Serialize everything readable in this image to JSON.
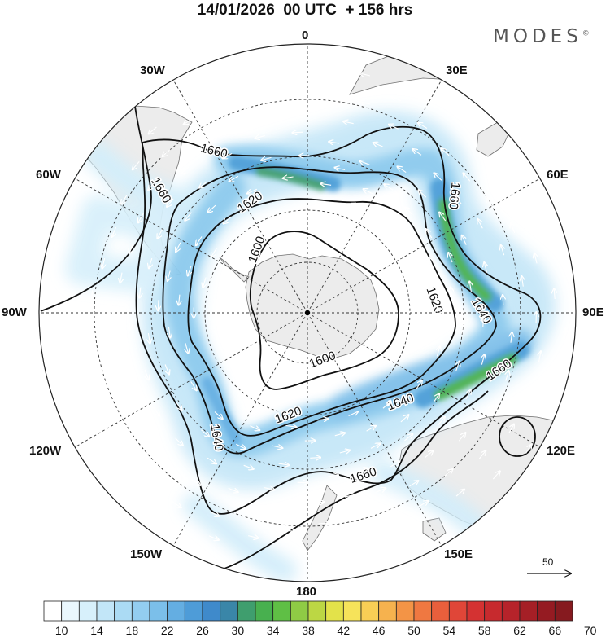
{
  "title": "14/01/2026  00 UTC  + 156 hrs",
  "brand": {
    "name": "MODES",
    "mark": "©"
  },
  "colors": {
    "land": "#ececec",
    "coast": "#6f6f6f",
    "contour": "#111111",
    "grid": "#333333",
    "arrow": "#ffffff"
  },
  "longitude_labels": [
    "0",
    "30E",
    "60E",
    "90E",
    "120E",
    "150E",
    "180",
    "150W",
    "120W",
    "90W",
    "60W",
    "30W"
  ],
  "contours": [
    {
      "label": "1600",
      "pos": "top-left"
    },
    {
      "label": "1600",
      "pos": "bottom"
    },
    {
      "label": "1620",
      "pos": "upper-left"
    },
    {
      "label": "1620",
      "pos": "right"
    },
    {
      "label": "1620",
      "pos": "lower"
    },
    {
      "label": "1640",
      "pos": "right"
    },
    {
      "label": "1640",
      "pos": "lower-right"
    },
    {
      "label": "1640",
      "pos": "left"
    },
    {
      "label": "1660",
      "pos": "top"
    },
    {
      "label": "1660",
      "pos": "left"
    },
    {
      "label": "1660",
      "pos": "bottom"
    },
    {
      "label": "1660",
      "pos": "upper-right"
    },
    {
      "label": "1660",
      "pos": "lower-right"
    }
  ],
  "reference_vector": {
    "value": "50"
  },
  "colorbar": {
    "labels": [
      "10",
      "14",
      "18",
      "22",
      "26",
      "30",
      "34",
      "38",
      "42",
      "46",
      "50",
      "54",
      "58",
      "62",
      "66",
      "70"
    ],
    "colors": [
      "#ffffff",
      "#eaf7fd",
      "#d7f0fb",
      "#c2e6f8",
      "#abdbf4",
      "#93cdf0",
      "#7bbfea",
      "#64aee2",
      "#4e9cd8",
      "#3f8acb",
      "#3a86a8",
      "#3f9e6e",
      "#48b04f",
      "#5fbf45",
      "#8fcb45",
      "#bcd744",
      "#e3e24a",
      "#f6e35a",
      "#f8ce55",
      "#f6b24e",
      "#f39446",
      "#ef7841",
      "#e95f3c",
      "#e04638",
      "#d43232",
      "#c72a2e",
      "#b6232a",
      "#a51f26",
      "#951b22",
      "#861a1f"
    ]
  }
}
